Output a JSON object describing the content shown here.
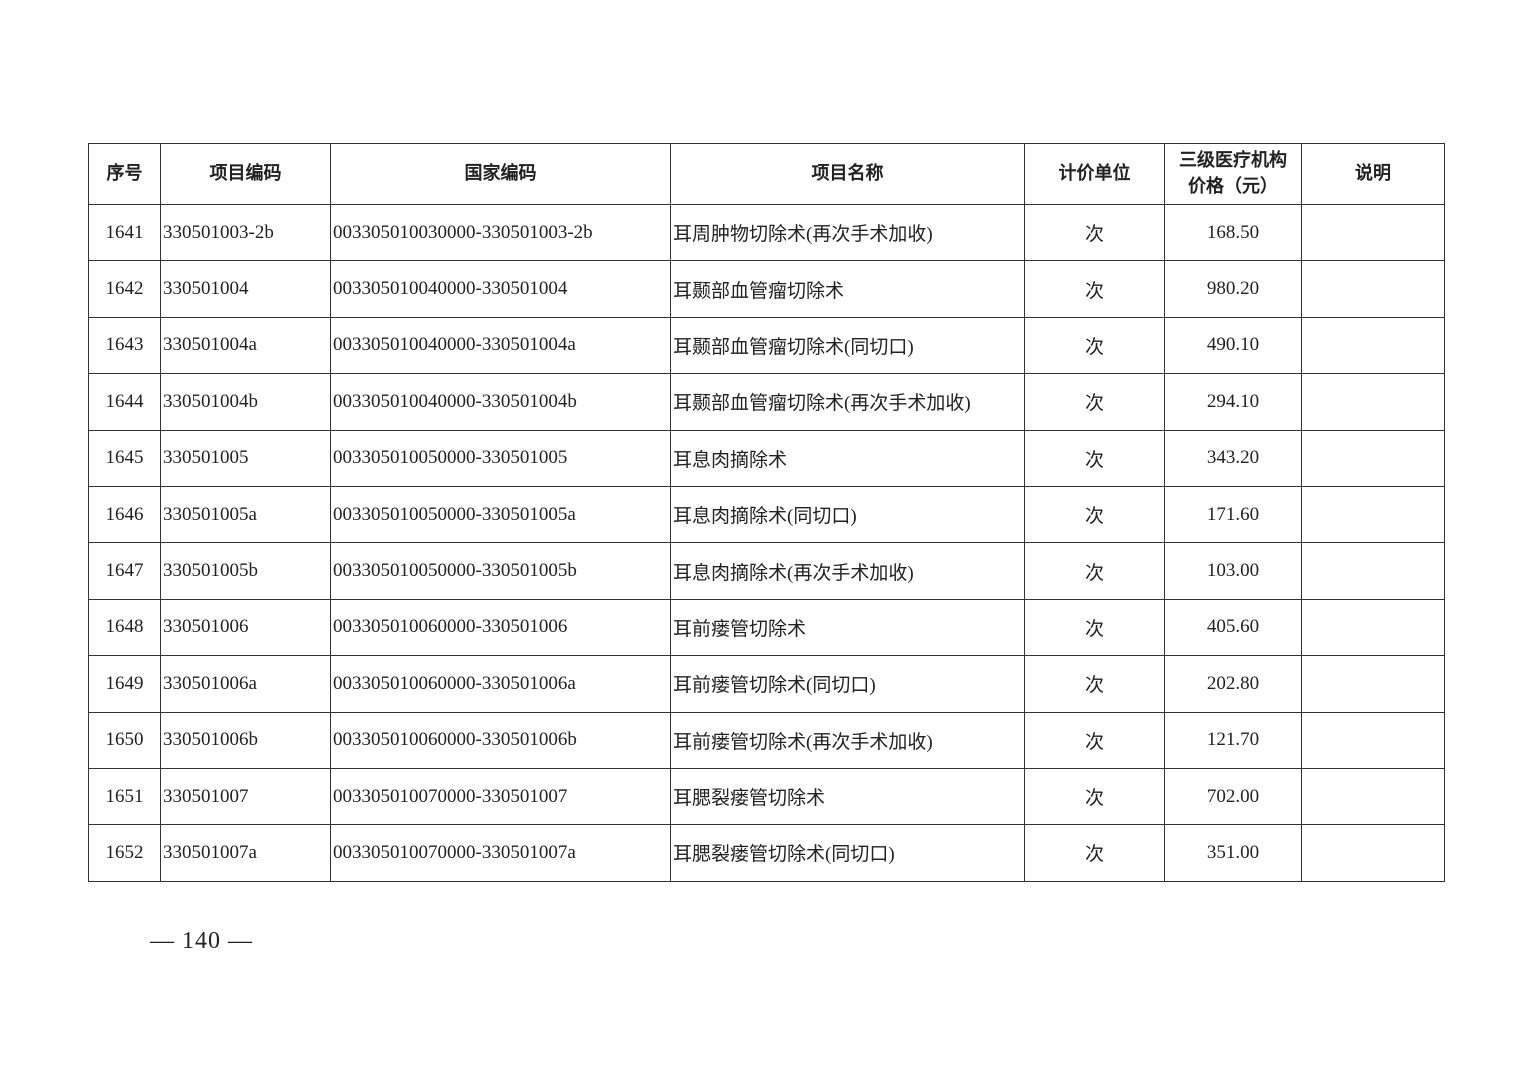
{
  "table": {
    "headers": [
      "序号",
      "项目编码",
      "国家编码",
      "项目名称",
      "计价单位",
      "三级医疗机构价格（元）",
      "说明"
    ],
    "header_price_line1": "三级医疗机构",
    "header_price_line2": "价格（元）",
    "rows": [
      [
        "1641",
        "330501003-2b",
        "003305010030000-330501003-2b",
        "耳周肿物切除术(再次手术加收)",
        "次",
        "168.50",
        ""
      ],
      [
        "1642",
        "330501004",
        "003305010040000-330501004",
        "耳颞部血管瘤切除术",
        "次",
        "980.20",
        ""
      ],
      [
        "1643",
        "330501004a",
        "003305010040000-330501004a",
        "耳颞部血管瘤切除术(同切口)",
        "次",
        "490.10",
        ""
      ],
      [
        "1644",
        "330501004b",
        "003305010040000-330501004b",
        "耳颞部血管瘤切除术(再次手术加收)",
        "次",
        "294.10",
        ""
      ],
      [
        "1645",
        "330501005",
        "003305010050000-330501005",
        "耳息肉摘除术",
        "次",
        "343.20",
        ""
      ],
      [
        "1646",
        "330501005a",
        "003305010050000-330501005a",
        "耳息肉摘除术(同切口)",
        "次",
        "171.60",
        ""
      ],
      [
        "1647",
        "330501005b",
        "003305010050000-330501005b",
        "耳息肉摘除术(再次手术加收)",
        "次",
        "103.00",
        ""
      ],
      [
        "1648",
        "330501006",
        "003305010060000-330501006",
        "耳前瘘管切除术",
        "次",
        "405.60",
        ""
      ],
      [
        "1649",
        "330501006a",
        "003305010060000-330501006a",
        "耳前瘘管切除术(同切口)",
        "次",
        "202.80",
        ""
      ],
      [
        "1650",
        "330501006b",
        "003305010060000-330501006b",
        "耳前瘘管切除术(再次手术加收)",
        "次",
        "121.70",
        ""
      ],
      [
        "1651",
        "330501007",
        "003305010070000-330501007",
        "耳腮裂瘘管切除术",
        "次",
        "702.00",
        ""
      ],
      [
        "1652",
        "330501007a",
        "003305010070000-330501007a",
        "耳腮裂瘘管切除术(同切口)",
        "次",
        "351.00",
        ""
      ]
    ]
  },
  "footer": {
    "page_number": "— 140 —"
  }
}
